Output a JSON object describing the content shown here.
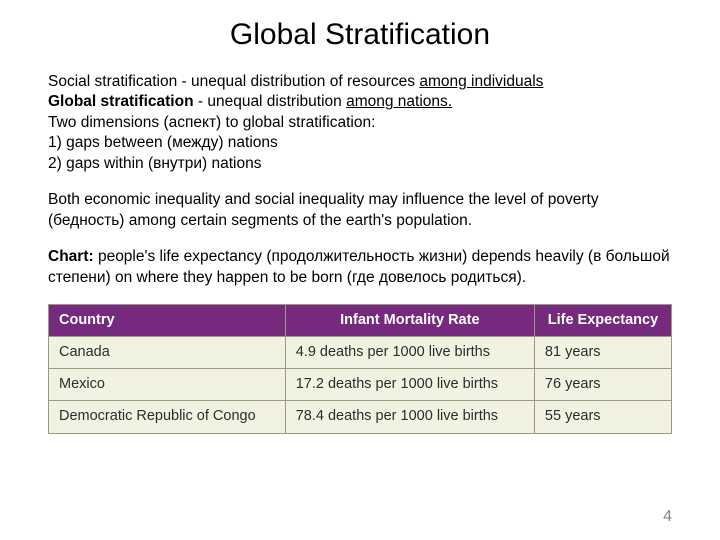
{
  "title": "Global Stratification",
  "p1": {
    "t1": "Social stratification - unequal distribution of resources ",
    "t2": "among individuals",
    "t3": "Global stratification",
    "t4": " - unequal distribution ",
    "t5": "among nations.",
    "t6": "Two dimensions (аспект) to global stratification:",
    "t7": "1) gaps between (между) nations",
    "t8": "2) gaps within (внутри) nations"
  },
  "p2": "Both economic inequality and social inequality may influence the level of poverty (бедность) among certain segments of the earth's population.",
  "p3": {
    "label": "Chart:",
    "rest": " people's life expectancy (продолжительность жизни) depends heavily (в большой степени) on where they happen to be born (где довелось родиться)."
  },
  "table": {
    "header_bg": "#752a7e",
    "header_fg": "#ffffff",
    "row_bg": "#f2f2e2",
    "border_color": "#9a9a80",
    "columns": [
      "Country",
      "Infant Mortality Rate",
      "Life Expectancy"
    ],
    "rows": [
      [
        "Canada",
        "4.9 deaths per 1000 live births",
        "81 years"
      ],
      [
        "Mexico",
        "17.2 deaths per 1000 live births",
        "76 years"
      ],
      [
        "Democratic Republic of Congo",
        "78.4 deaths per 1000 live births",
        "55 years"
      ]
    ]
  },
  "page_number": "4"
}
